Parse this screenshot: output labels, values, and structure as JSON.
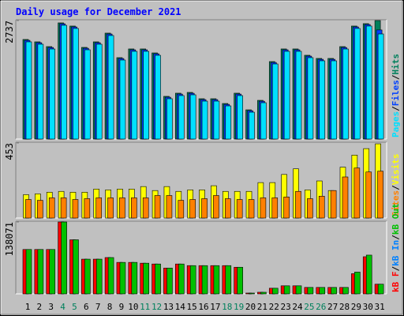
{
  "chart_data": [
    {
      "type": "bar",
      "title": "Daily usage for December 2021",
      "ylim": [
        0,
        2737
      ],
      "yticks": [
        2737
      ],
      "legend_separator": "/",
      "legend_reversed": true,
      "series": [
        {
          "name": "Hits",
          "color": "#00805c",
          "values": [
            2300,
            2245,
            2135,
            2683,
            2610,
            2117,
            2245,
            2446,
            1880,
            2081,
            2081,
            1989,
            986,
            1059,
            1077,
            931,
            931,
            821,
            1059,
            675,
            894,
            1789,
            2081,
            2081,
            1935,
            1862,
            1862,
            2135,
            2610,
            2665,
            2737
          ]
        },
        {
          "name": "Files",
          "color": "#0040ff",
          "values": [
            2280,
            2225,
            2115,
            2663,
            2590,
            2097,
            2225,
            2426,
            1860,
            2061,
            2061,
            1969,
            966,
            1039,
            1057,
            911,
            911,
            801,
            1039,
            655,
            874,
            1769,
            2061,
            2061,
            1915,
            1842,
            1842,
            2115,
            2590,
            2645,
            2520
          ]
        },
        {
          "name": "Pages",
          "color": "#00e0ff",
          "values": [
            2245,
            2190,
            2080,
            2628,
            2555,
            2062,
            2190,
            2391,
            1825,
            2026,
            2026,
            1934,
            931,
            1004,
            1022,
            876,
            876,
            766,
            1004,
            620,
            839,
            1734,
            2026,
            2026,
            1880,
            1807,
            1807,
            2080,
            2555,
            2610,
            2427
          ]
        }
      ]
    },
    {
      "type": "bar",
      "ylim": [
        0,
        453
      ],
      "yticks": [
        453
      ],
      "legend_separator": "/",
      "legend_reversed": true,
      "series": [
        {
          "name": "Visits",
          "color": "#ffff00",
          "values": [
            141,
            146,
            156,
            161,
            156,
            156,
            175,
            170,
            175,
            175,
            190,
            166,
            190,
            161,
            170,
            170,
            195,
            161,
            161,
            161,
            214,
            214,
            263,
            297,
            170,
            224,
            166,
            307,
            380,
            419,
            448
          ]
        },
        {
          "name": "Sites",
          "color": "#ff8000",
          "values": [
            112,
            107,
            122,
            122,
            112,
            117,
            122,
            122,
            122,
            122,
            122,
            136,
            136,
            107,
            112,
            117,
            136,
            117,
            112,
            112,
            122,
            122,
            127,
            161,
            117,
            132,
            166,
            248,
            302,
            278,
            283
          ]
        }
      ]
    },
    {
      "type": "bar",
      "ylim": [
        0,
        138071
      ],
      "yticks": [
        138071
      ],
      "legend_separator": "/",
      "legend_reversed": false,
      "categories": [
        "1",
        "2",
        "3",
        "4",
        "5",
        "6",
        "7",
        "8",
        "9",
        "10",
        "11",
        "12",
        "13",
        "14",
        "15",
        "16",
        "17",
        "18",
        "19",
        "20",
        "21",
        "22",
        "23",
        "24",
        "25",
        "26",
        "27",
        "28",
        "29",
        "30",
        "31"
      ],
      "category_colors": [
        "#000000",
        "#000000",
        "#000000",
        "#00805c",
        "#00805c",
        "#000000",
        "#000000",
        "#000000",
        "#000000",
        "#000000",
        "#00805c",
        "#00805c",
        "#000000",
        "#000000",
        "#000000",
        "#000000",
        "#000000",
        "#00805c",
        "#00805c",
        "#000000",
        "#000000",
        "#000000",
        "#000000",
        "#000000",
        "#00805c",
        "#00805c",
        "#000000",
        "#000000",
        "#000000",
        "#000000",
        "#000000"
      ],
      "series": [
        {
          "name": "kB F",
          "color": "#ff0000",
          "values": [
            85305,
            85305,
            85305,
            138071,
            103917,
            66693,
            66693,
            69795,
            60489,
            60489,
            58938,
            57387,
            49632,
            57387,
            54285,
            54285,
            54285,
            54285,
            51183,
            1551,
            3102,
            10857,
            15510,
            15510,
            12408,
            12408,
            12408,
            12408,
            38775,
            71346,
            18612
          ]
        },
        {
          "name": "kB In",
          "color": "#0080ff",
          "values": [
            0,
            0,
            0,
            0,
            0,
            0,
            0,
            0,
            0,
            0,
            0,
            0,
            0,
            0,
            0,
            0,
            0,
            0,
            0,
            0,
            0,
            0,
            0,
            0,
            0,
            0,
            0,
            0,
            0,
            0,
            0
          ]
        },
        {
          "name": "kB Out",
          "color": "#00c000",
          "values": [
            85305,
            85305,
            85305,
            138071,
            103917,
            66693,
            66693,
            69795,
            60489,
            60489,
            58938,
            57387,
            49632,
            57387,
            54285,
            54285,
            54285,
            54285,
            51183,
            1551,
            3102,
            10857,
            15510,
            15510,
            12408,
            12408,
            12408,
            12408,
            41877,
            74448,
            18612
          ]
        }
      ]
    }
  ]
}
